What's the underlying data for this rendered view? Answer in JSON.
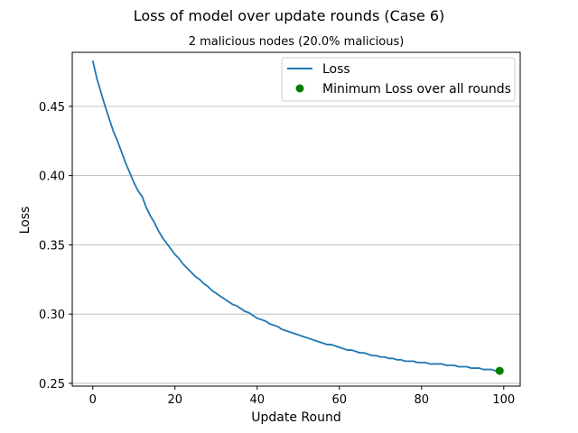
{
  "figure": {
    "title": "Loss of model over update rounds (Case 6)"
  },
  "chart_data": {
    "type": "line",
    "title": "2 malicious nodes (20.0% malicious)",
    "xlabel": "Update Round",
    "ylabel": "Loss",
    "xlim": [
      -5,
      104
    ],
    "ylim": [
      0.248,
      0.489
    ],
    "xticks": [
      0,
      20,
      40,
      60,
      80,
      100
    ],
    "yticks": [
      0.25,
      0.3,
      0.35,
      0.4,
      0.45
    ],
    "xtick_labels": [
      "0",
      "20",
      "40",
      "60",
      "80",
      "100"
    ],
    "ytick_labels": [
      "0.25",
      "0.30",
      "0.35",
      "0.40",
      "0.45"
    ],
    "grid": "horizontal",
    "legend_position": "top-right",
    "series": [
      {
        "name": "Loss",
        "color": "#1f77b4",
        "x": [
          0,
          1,
          2,
          3,
          4,
          5,
          6,
          7,
          8,
          9,
          10,
          11,
          12,
          13,
          14,
          15,
          16,
          17,
          18,
          19,
          20,
          21,
          22,
          23,
          24,
          25,
          26,
          27,
          28,
          29,
          30,
          31,
          32,
          33,
          34,
          35,
          36,
          37,
          38,
          39,
          40,
          41,
          42,
          43,
          44,
          45,
          46,
          47,
          48,
          49,
          50,
          51,
          52,
          53,
          54,
          55,
          56,
          57,
          58,
          59,
          60,
          61,
          62,
          63,
          64,
          65,
          66,
          67,
          68,
          69,
          70,
          71,
          72,
          73,
          74,
          75,
          76,
          77,
          78,
          79,
          80,
          81,
          82,
          83,
          84,
          85,
          86,
          87,
          88,
          89,
          90,
          91,
          92,
          93,
          94,
          95,
          96,
          97,
          98,
          99
        ],
        "y": [
          0.483,
          0.47,
          0.46,
          0.45,
          0.441,
          0.432,
          0.425,
          0.417,
          0.409,
          0.402,
          0.395,
          0.389,
          0.385,
          0.377,
          0.371,
          0.366,
          0.36,
          0.355,
          0.351,
          0.347,
          0.343,
          0.34,
          0.336,
          0.333,
          0.33,
          0.327,
          0.325,
          0.322,
          0.32,
          0.317,
          0.315,
          0.313,
          0.311,
          0.309,
          0.307,
          0.306,
          0.304,
          0.302,
          0.301,
          0.299,
          0.297,
          0.296,
          0.295,
          0.293,
          0.292,
          0.291,
          0.289,
          0.288,
          0.287,
          0.286,
          0.285,
          0.284,
          0.283,
          0.282,
          0.281,
          0.28,
          0.279,
          0.278,
          0.278,
          0.277,
          0.276,
          0.275,
          0.274,
          0.274,
          0.273,
          0.272,
          0.272,
          0.271,
          0.27,
          0.27,
          0.269,
          0.269,
          0.268,
          0.268,
          0.267,
          0.267,
          0.266,
          0.266,
          0.266,
          0.265,
          0.265,
          0.265,
          0.264,
          0.264,
          0.264,
          0.264,
          0.263,
          0.263,
          0.263,
          0.262,
          0.262,
          0.262,
          0.261,
          0.261,
          0.261,
          0.26,
          0.26,
          0.26,
          0.259,
          0.259
        ]
      },
      {
        "name": "Minimum Loss over all rounds",
        "type": "scatter",
        "color": "#008000",
        "x": [
          99
        ],
        "y": [
          0.259
        ]
      }
    ]
  }
}
